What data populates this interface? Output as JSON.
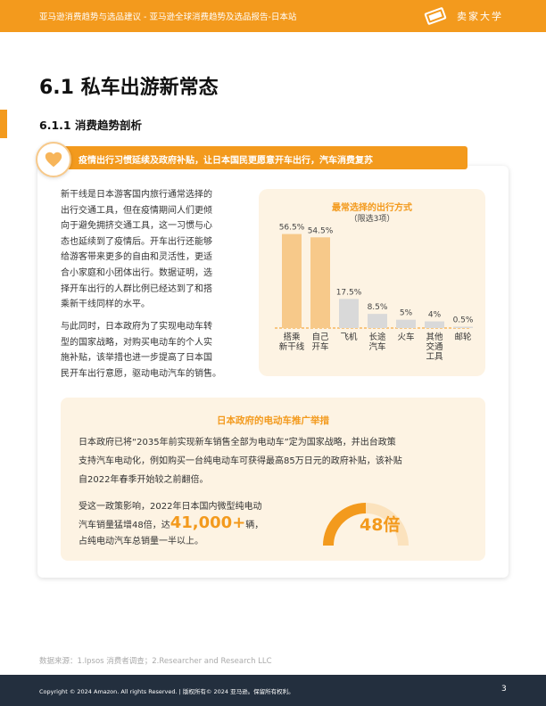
{
  "header": {
    "doc_title": "亚马逊消费趋势与选品建议 - 亚马逊全球消费趋势及选品报告-日本站",
    "brand": "卖家大学"
  },
  "page_title": "6.1 私车出游新常态",
  "section_title": "6.1.1 消费趋势剖析",
  "banner_text": "疫情出行习惯延续及政府补贴，让日本国民更愿意开车出行，汽车消费复苏",
  "body": {
    "para1": [
      "新干线是日本游客国内旅行通常选择的",
      "出行交通工具，但在疫情期间人们更倾",
      "向于避免拥挤交通工具，这一习惯与心",
      "态也延续到了疫情后。开车出行还能够",
      "给游客带来更多的自由和灵活性，更适",
      "合小家庭和小团体出行。数据证明，选",
      "择开车出行的人群比例已经达到了和搭",
      "乘新干线同样的水平。"
    ],
    "para2": [
      "与此同时，日本政府为了实现电动车转",
      "型的国家战略，对购买电动车的个人实",
      "施补贴，该举措也进一步提高了日本国",
      "民开车出行意愿，驱动电动汽车的销售。"
    ]
  },
  "chart_data": {
    "type": "bar",
    "title": "最常选择的出行方式",
    "subtitle": "（限选3项）",
    "categories": [
      [
        "搭乘",
        "新干线"
      ],
      [
        "自己",
        "开车"
      ],
      [
        "飞机"
      ],
      [
        "长途",
        "汽车"
      ],
      [
        "火车"
      ],
      [
        "其他",
        "交通",
        "工具"
      ],
      [
        "邮轮"
      ]
    ],
    "values": [
      56.5,
      54.5,
      17.5,
      8.5,
      5,
      4,
      0.5
    ],
    "value_labels": [
      "56.5%",
      "54.5%",
      "17.5%",
      "8.5%",
      "5%",
      "4%",
      "0.5%"
    ],
    "highlight_colors": [
      "#f7c98a",
      "#f7c98a",
      "#d9d9d9",
      "#d9d9d9",
      "#d9d9d9",
      "#d9d9d9",
      "#d9d9d9"
    ],
    "ylim": [
      0,
      60
    ]
  },
  "ev": {
    "title": "日本政府的电动车推广举措",
    "text": [
      "日本政府已将“2035年前实现新车销售全部为电动车”定为国家战略，并出台政策",
      "支持汽车电动化，例如购买一台纯电动车可获得最高85万日元的政府补贴，该补贴",
      "自2022年春季开始较之前翻倍。"
    ],
    "sub_line1": "受这一政策影响，2022年日本国内微型纯电动",
    "sub_line2_pre": "汽车销量猛增48倍，达",
    "sub_big": "41,000+",
    "sub_line2_post": "辆，",
    "sub_line3": "占纯电动汽车总销量一半以上。",
    "gauge_label": "48倍",
    "gauge_fill": 0.5
  },
  "source": "数据来源：1.Ipsos 消费者调查；2.Researcher and Research LLC",
  "footer": {
    "copyright": "Copyright © 2024 Amazon. All rights Reserved. | 版权所有© 2024 亚马逊。保留所有权利。",
    "page_number": "3"
  },
  "colors": {
    "accent": "#f39a1d",
    "footer_bg": "#232f3e",
    "panel_bg": "#fdf3e3"
  }
}
